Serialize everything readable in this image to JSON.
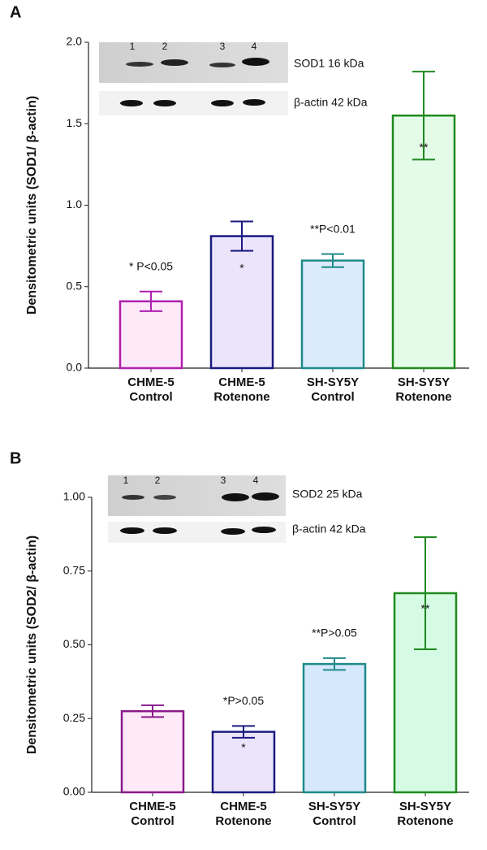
{
  "chart_data": [
    {
      "type": "bar",
      "panel": "A",
      "ylabel": "Densitometric units (SOD1/ β-actin)",
      "categories": [
        [
          "CHME-5",
          "Control"
        ],
        [
          "CHME-5",
          "Rotenone"
        ],
        [
          "SH-SY5Y",
          "Control"
        ],
        [
          "SH-SY5Y",
          "Rotenone"
        ]
      ],
      "values": [
        0.41,
        0.81,
        0.66,
        1.55
      ],
      "errors": [
        0.06,
        0.09,
        0.04,
        0.27
      ],
      "colors": [
        "#b01fb0",
        "#1a1a80",
        "#1f8a8a",
        "#1e8a1e"
      ],
      "fill_colors": [
        "#fde9f8",
        "#ece4fb",
        "#dcebfb",
        "#e4fbe8"
      ],
      "top_annotations": [
        "* P<0.05",
        null,
        "**P<0.01",
        null
      ],
      "bar_annotations": [
        null,
        "*",
        null,
        "**"
      ],
      "ylim": [
        0,
        2
      ],
      "yticks": [
        {
          "value": 0,
          "label": "0.0"
        },
        0.5,
        {
          "value": 1,
          "label": "1.0"
        },
        1.5,
        {
          "value": 2,
          "label": "2.0"
        }
      ],
      "blot": {
        "lanes": [
          "1",
          "2",
          "3",
          "4"
        ],
        "labels": [
          "SOD1 16 kDa",
          "β-actin 42 kDa"
        ]
      }
    },
    {
      "type": "bar",
      "panel": "B",
      "ylabel": "Densitometric units (SOD2/ β-actin)",
      "categories": [
        [
          "CHME-5",
          "Control"
        ],
        [
          "CHME-5",
          "Rotenone"
        ],
        [
          "SH-SY5Y",
          "Control"
        ],
        [
          "SH-SY5Y",
          "Rotenone"
        ]
      ],
      "values": [
        0.275,
        0.205,
        0.435,
        0.675
      ],
      "errors": [
        0.02,
        0.02,
        0.02,
        0.19
      ],
      "colors": [
        "#8a1a8a",
        "#1a1a80",
        "#1f8a8a",
        "#1e8a1e"
      ],
      "fill_colors": [
        "#fde9f8",
        "#ece4fb",
        "#d6e8fb",
        "#d6fbe4"
      ],
      "top_annotations": [
        null,
        "*P>0.05",
        "**P>0.05",
        null
      ],
      "bar_annotations": [
        null,
        "*",
        null,
        "**"
      ],
      "ylim": [
        0,
        1
      ],
      "yticks": [
        {
          "value": 0,
          "label": "0.00"
        },
        0.25,
        {
          "value": 0.5,
          "label": "0.50"
        },
        0.75,
        {
          "value": 1,
          "label": "1.00"
        }
      ],
      "blot": {
        "lanes": [
          "1",
          "2",
          "3",
          "4"
        ],
        "labels": [
          "SOD2 25 kDa",
          "β-actin 42 kDa"
        ]
      }
    }
  ]
}
